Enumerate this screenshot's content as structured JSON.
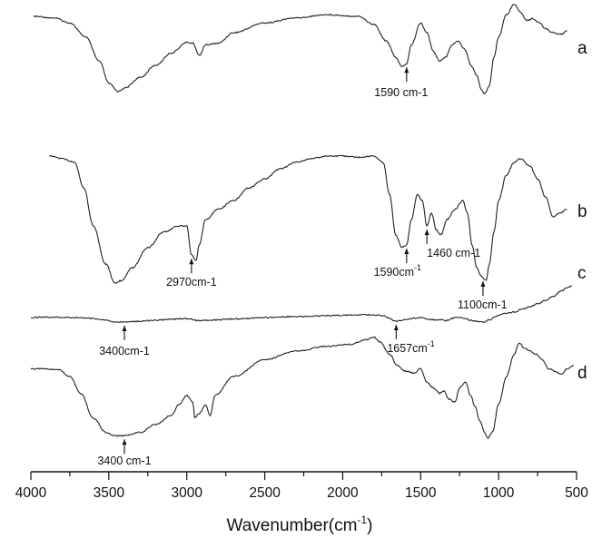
{
  "chart_data": {
    "type": "line",
    "title": "",
    "xlabel": "Wavenumber(cm",
    "xlabel_sup": "-1",
    "xlabel_close": ")",
    "xlim": [
      4000,
      500
    ],
    "reversed_x": true,
    "x_ticks": [
      4000,
      3500,
      3000,
      2500,
      2000,
      1500,
      1000,
      500
    ],
    "y_axis_visible": false,
    "grid": false,
    "legend": "none",
    "series": [
      {
        "name": "a",
        "points": [
          [
            3980,
            0.0
          ],
          [
            3850,
            0.02
          ],
          [
            3750,
            0.08
          ],
          [
            3650,
            0.25
          ],
          [
            3560,
            0.55
          ],
          [
            3500,
            0.82
          ],
          [
            3440,
            0.92
          ],
          [
            3400,
            0.88
          ],
          [
            3300,
            0.75
          ],
          [
            3200,
            0.6
          ],
          [
            3100,
            0.45
          ],
          [
            3000,
            0.32
          ],
          [
            2960,
            0.33
          ],
          [
            2920,
            0.48
          ],
          [
            2880,
            0.35
          ],
          [
            2800,
            0.33
          ],
          [
            2700,
            0.2
          ],
          [
            2500,
            0.08
          ],
          [
            2300,
            0.02
          ],
          [
            2100,
            -0.02
          ],
          [
            1900,
            0.0
          ],
          [
            1800,
            0.1
          ],
          [
            1720,
            0.3
          ],
          [
            1660,
            0.5
          ],
          [
            1620,
            0.62
          ],
          [
            1590,
            0.58
          ],
          [
            1560,
            0.35
          ],
          [
            1500,
            0.08
          ],
          [
            1460,
            0.2
          ],
          [
            1420,
            0.42
          ],
          [
            1380,
            0.55
          ],
          [
            1340,
            0.5
          ],
          [
            1300,
            0.35
          ],
          [
            1260,
            0.3
          ],
          [
            1220,
            0.4
          ],
          [
            1170,
            0.62
          ],
          [
            1140,
            0.72
          ],
          [
            1110,
            0.9
          ],
          [
            1090,
            0.95
          ],
          [
            1060,
            0.85
          ],
          [
            1030,
            0.5
          ],
          [
            1000,
            0.25
          ],
          [
            950,
            -0.02
          ],
          [
            900,
            -0.15
          ],
          [
            860,
            -0.05
          ],
          [
            820,
            0.05
          ],
          [
            780,
            0.03
          ],
          [
            740,
            0.08
          ],
          [
            700,
            0.15
          ],
          [
            650,
            0.2
          ],
          [
            600,
            0.22
          ],
          [
            560,
            0.18
          ]
        ]
      },
      {
        "name": "b",
        "points": [
          [
            3880,
            0.0
          ],
          [
            3800,
            0.02
          ],
          [
            3720,
            0.05
          ],
          [
            3660,
            0.25
          ],
          [
            3600,
            0.55
          ],
          [
            3520,
            0.85
          ],
          [
            3460,
            1.0
          ],
          [
            3420,
            0.98
          ],
          [
            3350,
            0.88
          ],
          [
            3250,
            0.72
          ],
          [
            3150,
            0.6
          ],
          [
            3050,
            0.55
          ],
          [
            3000,
            0.55
          ],
          [
            2970,
            0.78
          ],
          [
            2940,
            0.82
          ],
          [
            2920,
            0.7
          ],
          [
            2880,
            0.5
          ],
          [
            2800,
            0.42
          ],
          [
            2700,
            0.35
          ],
          [
            2600,
            0.25
          ],
          [
            2500,
            0.18
          ],
          [
            2400,
            0.1
          ],
          [
            2300,
            0.05
          ],
          [
            2200,
            0.02
          ],
          [
            2100,
            0.0
          ],
          [
            2000,
            0.0
          ],
          [
            1900,
            0.01
          ],
          [
            1800,
            0.0
          ],
          [
            1740,
            0.05
          ],
          [
            1700,
            0.3
          ],
          [
            1660,
            0.62
          ],
          [
            1620,
            0.72
          ],
          [
            1590,
            0.7
          ],
          [
            1560,
            0.5
          ],
          [
            1520,
            0.3
          ],
          [
            1490,
            0.35
          ],
          [
            1460,
            0.55
          ],
          [
            1430,
            0.45
          ],
          [
            1400,
            0.58
          ],
          [
            1370,
            0.62
          ],
          [
            1330,
            0.5
          ],
          [
            1280,
            0.42
          ],
          [
            1230,
            0.35
          ],
          [
            1200,
            0.45
          ],
          [
            1170,
            0.7
          ],
          [
            1140,
            0.88
          ],
          [
            1110,
            0.95
          ],
          [
            1080,
            0.98
          ],
          [
            1060,
            0.85
          ],
          [
            1030,
            0.6
          ],
          [
            1000,
            0.35
          ],
          [
            950,
            0.15
          ],
          [
            900,
            0.05
          ],
          [
            860,
            0.02
          ],
          [
            800,
            0.08
          ],
          [
            750,
            0.18
          ],
          [
            700,
            0.32
          ],
          [
            650,
            0.48
          ],
          [
            610,
            0.45
          ],
          [
            560,
            0.42
          ]
        ]
      },
      {
        "name": "c",
        "points": [
          [
            4000,
            0.9
          ],
          [
            3900,
            0.89
          ],
          [
            3800,
            0.9
          ],
          [
            3700,
            0.9
          ],
          [
            3600,
            0.92
          ],
          [
            3520,
            0.96
          ],
          [
            3460,
            1.0
          ],
          [
            3400,
            1.0
          ],
          [
            3300,
            0.98
          ],
          [
            3200,
            0.96
          ],
          [
            3100,
            0.94
          ],
          [
            3000,
            0.92
          ],
          [
            2960,
            0.94
          ],
          [
            2930,
            0.97
          ],
          [
            2900,
            0.96
          ],
          [
            2850,
            0.96
          ],
          [
            2700,
            0.93
          ],
          [
            2500,
            0.9
          ],
          [
            2300,
            0.88
          ],
          [
            2100,
            0.86
          ],
          [
            1900,
            0.84
          ],
          [
            1800,
            0.84
          ],
          [
            1740,
            0.86
          ],
          [
            1700,
            0.92
          ],
          [
            1660,
            0.98
          ],
          [
            1630,
            0.97
          ],
          [
            1600,
            0.95
          ],
          [
            1500,
            0.9
          ],
          [
            1460,
            0.93
          ],
          [
            1420,
            0.95
          ],
          [
            1380,
            0.94
          ],
          [
            1340,
            0.97
          ],
          [
            1300,
            0.92
          ],
          [
            1260,
            0.89
          ],
          [
            1220,
            0.92
          ],
          [
            1180,
            0.96
          ],
          [
            1150,
            0.98
          ],
          [
            1120,
            1.0
          ],
          [
            1090,
            1.0
          ],
          [
            1060,
            0.95
          ],
          [
            1020,
            0.88
          ],
          [
            980,
            0.82
          ],
          [
            950,
            0.8
          ],
          [
            900,
            0.78
          ],
          [
            850,
            0.72
          ],
          [
            800,
            0.66
          ],
          [
            750,
            0.6
          ],
          [
            700,
            0.52
          ],
          [
            650,
            0.44
          ],
          [
            600,
            0.32
          ],
          [
            560,
            0.24
          ],
          [
            530,
            0.2
          ]
        ]
      },
      {
        "name": "d",
        "points": [
          [
            4000,
            0.28
          ],
          [
            3900,
            0.28
          ],
          [
            3820,
            0.29
          ],
          [
            3750,
            0.35
          ],
          [
            3680,
            0.5
          ],
          [
            3600,
            0.72
          ],
          [
            3520,
            0.85
          ],
          [
            3460,
            0.88
          ],
          [
            3400,
            0.88
          ],
          [
            3300,
            0.85
          ],
          [
            3200,
            0.78
          ],
          [
            3100,
            0.7
          ],
          [
            3050,
            0.6
          ],
          [
            3000,
            0.52
          ],
          [
            2960,
            0.58
          ],
          [
            2950,
            0.72
          ],
          [
            2920,
            0.68
          ],
          [
            2880,
            0.6
          ],
          [
            2850,
            0.7
          ],
          [
            2820,
            0.52
          ],
          [
            2700,
            0.35
          ],
          [
            2500,
            0.2
          ],
          [
            2300,
            0.12
          ],
          [
            2100,
            0.08
          ],
          [
            1950,
            0.06
          ],
          [
            1850,
            0.02
          ],
          [
            1800,
            0.0
          ],
          [
            1760,
            0.04
          ],
          [
            1700,
            0.15
          ],
          [
            1650,
            0.25
          ],
          [
            1600,
            0.3
          ],
          [
            1540,
            0.32
          ],
          [
            1500,
            0.28
          ],
          [
            1460,
            0.4
          ],
          [
            1420,
            0.45
          ],
          [
            1380,
            0.5
          ],
          [
            1350,
            0.48
          ],
          [
            1320,
            0.55
          ],
          [
            1280,
            0.58
          ],
          [
            1250,
            0.45
          ],
          [
            1210,
            0.4
          ],
          [
            1180,
            0.52
          ],
          [
            1150,
            0.62
          ],
          [
            1120,
            0.75
          ],
          [
            1090,
            0.85
          ],
          [
            1070,
            0.9
          ],
          [
            1040,
            0.85
          ],
          [
            1000,
            0.6
          ],
          [
            950,
            0.35
          ],
          [
            900,
            0.15
          ],
          [
            870,
            0.05
          ],
          [
            830,
            0.1
          ],
          [
            800,
            0.12
          ],
          [
            760,
            0.15
          ],
          [
            720,
            0.2
          ],
          [
            680,
            0.28
          ],
          [
            640,
            0.3
          ],
          [
            600,
            0.33
          ],
          [
            560,
            0.28
          ],
          [
            520,
            0.25
          ]
        ]
      }
    ],
    "annotations": [
      {
        "series": "a",
        "x": 1590,
        "text": "1590 cm-1",
        "sup": "",
        "direction": "up"
      },
      {
        "series": "b",
        "x": 2970,
        "text": "2970cm-1",
        "sup": "",
        "direction": "up"
      },
      {
        "series": "b",
        "x": 1590,
        "text": "1590cm",
        "sup": "-1",
        "direction": "up"
      },
      {
        "series": "b",
        "x": 1460,
        "text": "1460 cm-1",
        "sup": "",
        "direction": "up"
      },
      {
        "series": "b",
        "x": 1100,
        "text": "1100cm-1",
        "sup": "",
        "direction": "up"
      },
      {
        "series": "c",
        "x": 3400,
        "text": "3400cm-1",
        "sup": "",
        "direction": "up"
      },
      {
        "series": "c",
        "x": 1657,
        "text": "1657cm",
        "sup": "-1",
        "direction": "up"
      },
      {
        "series": "d",
        "x": 3400,
        "text": "3400 cm-1",
        "sup": "",
        "direction": "up"
      }
    ]
  }
}
